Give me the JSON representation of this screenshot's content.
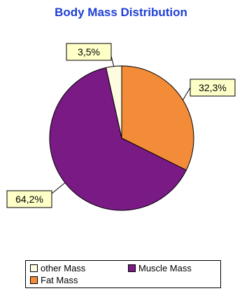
{
  "chart_data": {
    "type": "pie",
    "title": "Body Mass Distribution",
    "slices": [
      {
        "name": "other Mass",
        "value": 3.5,
        "label": "3,5%",
        "color": "#fffbe0"
      },
      {
        "name": "Fat Mass",
        "value": 32.3,
        "label": "32,3%",
        "color": "#f28c38"
      },
      {
        "name": "Muscle Mass",
        "value": 64.2,
        "label": "64,2%",
        "color": "#7a1a85"
      }
    ],
    "legend_position": "bottom",
    "colors": {
      "title": "#1f3fd6",
      "label_box": "#ffffc8",
      "outline": "#000000"
    }
  },
  "legend": {
    "items": [
      {
        "label": "other Mass",
        "color": "#fffbe0"
      },
      {
        "label": "Muscle Mass",
        "color": "#7a1a85"
      },
      {
        "label": "Fat Mass",
        "color": "#f28c38"
      }
    ]
  }
}
